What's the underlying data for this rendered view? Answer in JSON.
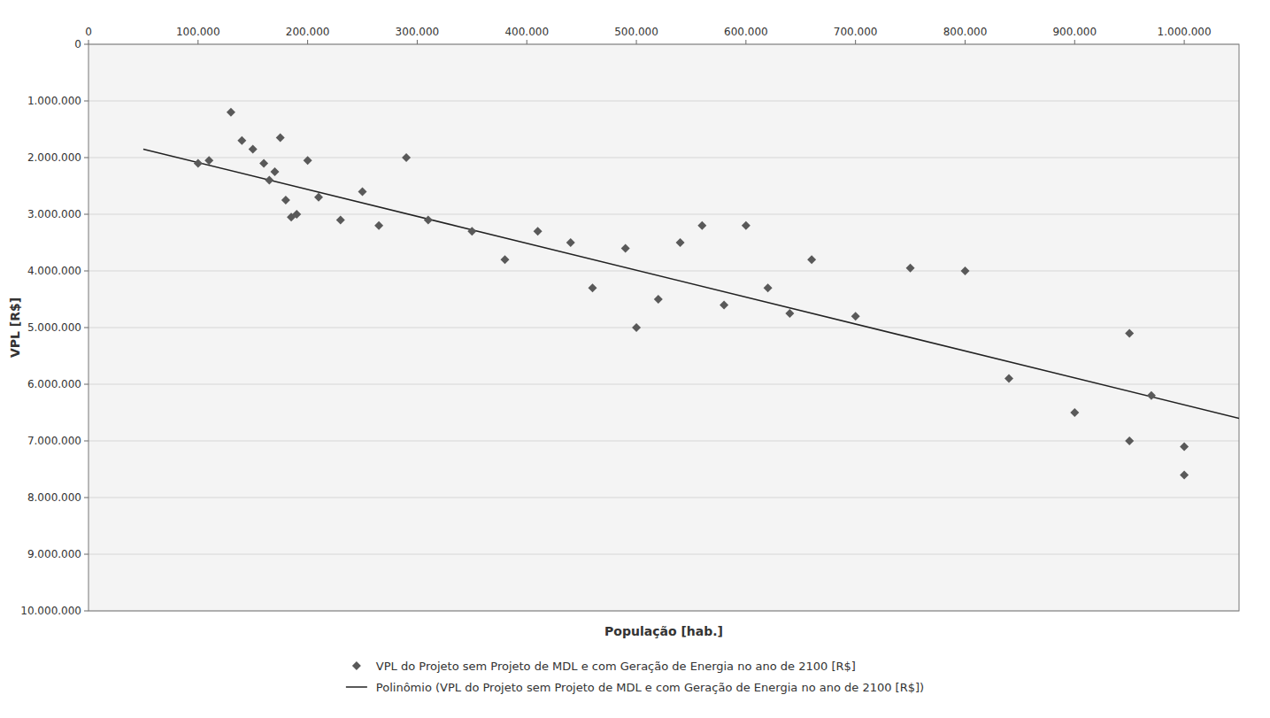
{
  "chart_data": {
    "type": "scatter",
    "x_label": "População [hab.]",
    "y_label": "VPL [R$]",
    "xlim": [
      0,
      1050000
    ],
    "ylim": [
      10000000,
      0
    ],
    "grid": true,
    "xticks": [
      0,
      {
        "value": 100000,
        "label": "100.000"
      },
      {
        "value": 200000,
        "label": "200.000"
      },
      {
        "value": 300000,
        "label": "300.000"
      },
      {
        "value": 400000,
        "label": "400.000"
      },
      {
        "value": 500000,
        "label": "500.000"
      },
      {
        "value": 600000,
        "label": "600.000"
      },
      {
        "value": 700000,
        "label": "700.000"
      },
      {
        "value": 800000,
        "label": "800.000"
      },
      {
        "value": 900000,
        "label": "900.000"
      },
      {
        "value": 1000000,
        "label": "1.000.000"
      }
    ],
    "yticks": [
      0,
      {
        "value": 1000000,
        "label": "1.000.000"
      },
      {
        "value": 2000000,
        "label": "2.000.000"
      },
      {
        "value": 3000000,
        "label": "3.000.000"
      },
      {
        "value": 4000000,
        "label": "4.000.000"
      },
      {
        "value": 5000000,
        "label": "5.000.000"
      },
      {
        "value": 6000000,
        "label": "6.000.000"
      },
      {
        "value": 7000000,
        "label": "7.000.000"
      },
      {
        "value": 8000000,
        "label": "8.000.000"
      },
      {
        "value": 9000000,
        "label": "9.000.000"
      },
      {
        "value": 10000000,
        "label": "10.000.000"
      }
    ],
    "series": [
      {
        "name": "VPL do Projeto  sem  Projeto de MDL e  com Geração de Energia no ano de 2100 [R$]",
        "type": "scatter",
        "marker": "diamond",
        "color": "#595959",
        "x": [
          100000,
          110000,
          130000,
          140000,
          150000,
          160000,
          165000,
          170000,
          175000,
          180000,
          185000,
          190000,
          200000,
          210000,
          230000,
          250000,
          265000,
          290000,
          310000,
          350000,
          380000,
          410000,
          440000,
          460000,
          490000,
          500000,
          520000,
          540000,
          560000,
          580000,
          600000,
          620000,
          640000,
          660000,
          700000,
          750000,
          800000,
          840000,
          900000,
          950000,
          970000,
          1000000
        ],
        "values": [
          2100000,
          2050000,
          1200000,
          1700000,
          1850000,
          2100000,
          2400000,
          2250000,
          1650000,
          2750000,
          3050000,
          3000000,
          2050000,
          2700000,
          3100000,
          2600000,
          3200000,
          2000000,
          3100000,
          3300000,
          3800000,
          3300000,
          3500000,
          4300000,
          3600000,
          5000000,
          4500000,
          3500000,
          3200000,
          4600000,
          3200000,
          4300000,
          4750000,
          3800000,
          4800000,
          3950000,
          4000000,
          5900000,
          6500000,
          5100000,
          6200000,
          7100000
        ]
      },
      {
        "type": "scatter",
        "marker": "diamond",
        "color": "#595959",
        "x": [
          950000,
          1000000
        ],
        "values": [
          7000000,
          7600000
        ]
      },
      {
        "name": "Polinômio (VPL do Projeto  sem  Projeto de MDL e  com Geração de Energia no ano de 2100 [R$])",
        "type": "line",
        "line_style": "solid",
        "color": "#222222",
        "x": [
          50000,
          1050000
        ],
        "values": [
          1850000,
          6600000
        ]
      }
    ]
  }
}
